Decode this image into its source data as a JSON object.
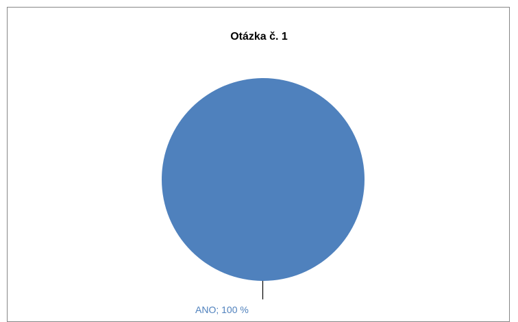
{
  "chart_data": {
    "type": "pie",
    "title": "Otázka č. 1",
    "slices": [
      {
        "label": "ANO",
        "value": 100,
        "data_label": "ANO; 100  %",
        "color": "#4F81BD"
      }
    ],
    "leader_line_color": "#000000",
    "label_color": "#4F81BD",
    "border_color": "#868686"
  }
}
